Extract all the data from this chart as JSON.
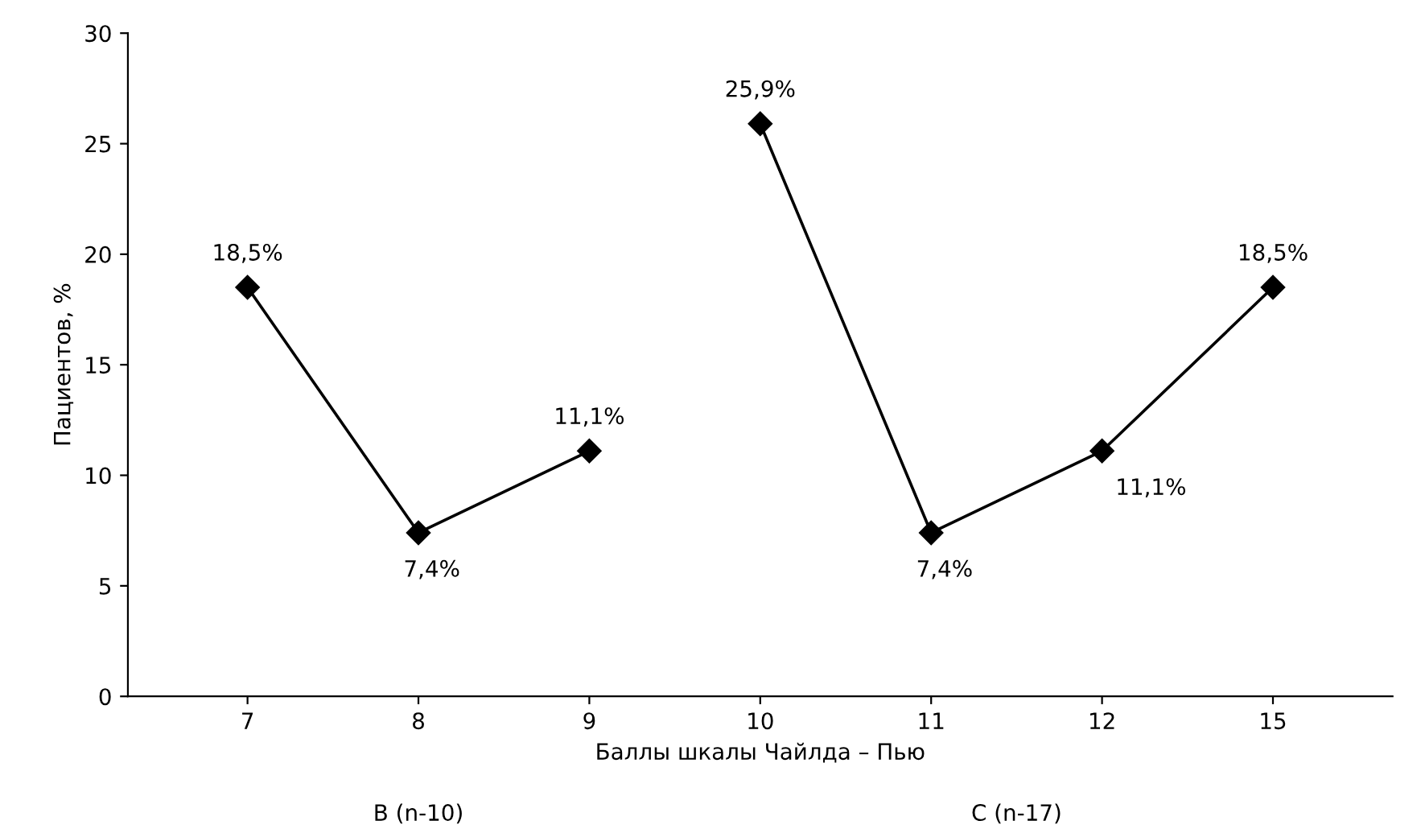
{
  "chart_data": {
    "type": "line",
    "xlabel": "Баллы шкалы Чайлда – Пью",
    "ylabel": "Пациентов, %",
    "categories": [
      "7",
      "8",
      "9",
      "10",
      "11",
      "12",
      "15"
    ],
    "series": [
      {
        "color": "#000000",
        "values": [
          18.5,
          7.4,
          11.1,
          null,
          null,
          null,
          null
        ],
        "value_labels": [
          "18,5%",
          "7,4%",
          "11,1%",
          null,
          null,
          null,
          null
        ]
      },
      {
        "color": "#000000",
        "values": [
          null,
          null,
          null,
          25.9,
          7.4,
          11.1,
          18.5
        ],
        "value_labels": [
          null,
          null,
          null,
          "25,9%",
          "7,4%",
          "11,1%",
          "18,5%"
        ]
      }
    ],
    "ylim": [
      0,
      30
    ],
    "yticks": [
      0,
      5,
      10,
      15,
      20,
      25,
      30
    ],
    "grid": false,
    "legend": false,
    "marker": "diamond",
    "line_style": "solid",
    "annotations": [
      "B (n-10)",
      "C (n-17)"
    ]
  }
}
